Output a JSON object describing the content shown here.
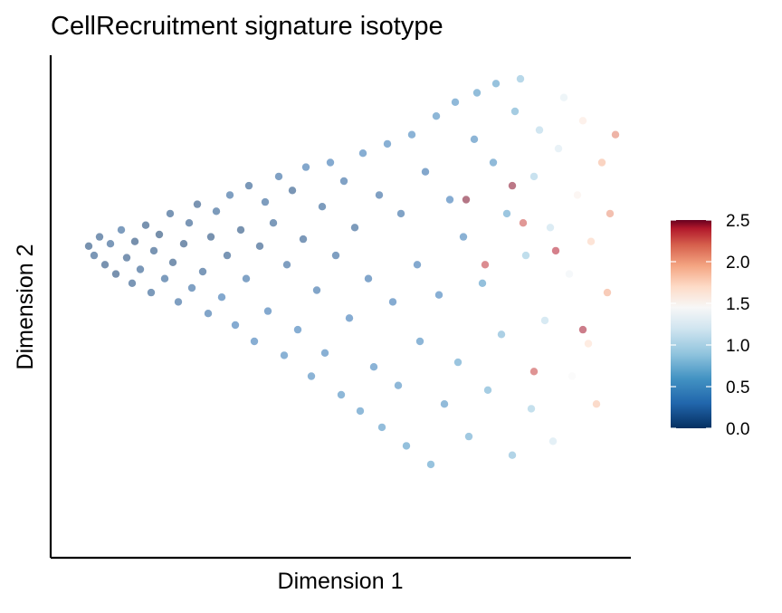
{
  "chart_data": {
    "type": "scatter",
    "title": "CellRecruitment signature isotype",
    "xlabel": "Dimension 1",
    "ylabel": "Dimension 2",
    "xticks_visible": false,
    "yticks_visible": false,
    "grid": false,
    "point_opacity": 0.55,
    "colorbar": {
      "placement": "right",
      "min": 0,
      "max": 2.5,
      "ticks": [
        "0.0",
        "0.5",
        "1.0",
        "1.5",
        "2.0",
        "2.5"
      ],
      "tick_values": [
        0,
        0.5,
        1.0,
        1.5,
        2.0,
        2.5
      ],
      "colors": [
        {
          "value": 0.0,
          "color": "#053061"
        },
        {
          "value": 0.3,
          "color": "#2166ac"
        },
        {
          "value": 0.6,
          "color": "#4393c3"
        },
        {
          "value": 0.9,
          "color": "#92c5de"
        },
        {
          "value": 1.2,
          "color": "#d1e5f0"
        },
        {
          "value": 1.45,
          "color": "#f7f7f7"
        },
        {
          "value": 1.7,
          "color": "#fddbc7"
        },
        {
          "value": 1.95,
          "color": "#f4a582"
        },
        {
          "value": 2.2,
          "color": "#d6604d"
        },
        {
          "value": 2.4,
          "color": "#b2182b"
        },
        {
          "value": 2.5,
          "color": "#67001f"
        }
      ]
    },
    "points": [
      [
        -0.94,
        0.26,
        0.05
      ],
      [
        -0.92,
        0.22,
        0.1
      ],
      [
        -0.9,
        0.3,
        0.08
      ],
      [
        -0.88,
        0.18,
        0.06
      ],
      [
        -0.86,
        0.27,
        0.12
      ],
      [
        -0.84,
        0.14,
        0.04
      ],
      [
        -0.82,
        0.33,
        0.16
      ],
      [
        -0.8,
        0.21,
        0.07
      ],
      [
        -0.78,
        0.1,
        0.09
      ],
      [
        -0.77,
        0.28,
        0.03
      ],
      [
        -0.75,
        0.16,
        0.11
      ],
      [
        -0.73,
        0.35,
        0.05
      ],
      [
        -0.71,
        0.06,
        0.13
      ],
      [
        -0.7,
        0.24,
        0.08
      ],
      [
        -0.68,
        0.31,
        0.02
      ],
      [
        -0.66,
        0.12,
        0.15
      ],
      [
        -0.64,
        0.4,
        0.09
      ],
      [
        -0.63,
        0.19,
        0.06
      ],
      [
        -0.61,
        0.02,
        0.18
      ],
      [
        -0.59,
        0.27,
        0.04
      ],
      [
        -0.57,
        0.36,
        0.1
      ],
      [
        -0.56,
        0.08,
        0.2
      ],
      [
        -0.54,
        0.44,
        0.07
      ],
      [
        -0.52,
        0.15,
        0.12
      ],
      [
        -0.5,
        -0.03,
        0.24
      ],
      [
        -0.49,
        0.3,
        0.05
      ],
      [
        -0.47,
        0.41,
        0.14
      ],
      [
        -0.45,
        0.04,
        0.27
      ],
      [
        -0.43,
        0.22,
        0.09
      ],
      [
        -0.42,
        0.48,
        0.18
      ],
      [
        -0.4,
        -0.08,
        0.3
      ],
      [
        -0.38,
        0.33,
        0.06
      ],
      [
        -0.36,
        0.12,
        0.22
      ],
      [
        -0.35,
        0.52,
        0.11
      ],
      [
        -0.33,
        -0.15,
        0.34
      ],
      [
        -0.31,
        0.26,
        0.08
      ],
      [
        -0.29,
        0.45,
        0.16
      ],
      [
        -0.28,
        -0.02,
        0.28
      ],
      [
        -0.26,
        0.36,
        0.13
      ],
      [
        -0.24,
        0.56,
        0.2
      ],
      [
        -0.22,
        -0.21,
        0.38
      ],
      [
        -0.21,
        0.18,
        0.17
      ],
      [
        -0.19,
        0.5,
        0.09
      ],
      [
        -0.17,
        -0.1,
        0.33
      ],
      [
        -0.15,
        0.29,
        0.12
      ],
      [
        -0.14,
        0.6,
        0.26
      ],
      [
        -0.12,
        -0.3,
        0.41
      ],
      [
        -0.1,
        0.07,
        0.24
      ],
      [
        -0.08,
        0.43,
        0.15
      ],
      [
        -0.07,
        -0.2,
        0.36
      ],
      [
        -0.05,
        0.62,
        0.29
      ],
      [
        -0.03,
        0.22,
        0.18
      ],
      [
        -0.01,
        -0.38,
        0.45
      ],
      [
        0.0,
        0.54,
        0.21
      ],
      [
        0.02,
        -0.05,
        0.31
      ],
      [
        0.04,
        0.34,
        0.14
      ],
      [
        0.06,
        -0.45,
        0.48
      ],
      [
        0.07,
        0.66,
        0.33
      ],
      [
        0.09,
        0.12,
        0.25
      ],
      [
        0.11,
        -0.26,
        0.4
      ],
      [
        0.13,
        0.48,
        0.19
      ],
      [
        0.14,
        -0.52,
        0.52
      ],
      [
        0.16,
        0.7,
        0.36
      ],
      [
        0.18,
        0.02,
        0.3
      ],
      [
        0.2,
        -0.34,
        0.46
      ],
      [
        0.21,
        0.4,
        0.22
      ],
      [
        0.23,
        -0.6,
        0.55
      ],
      [
        0.25,
        0.74,
        0.4
      ],
      [
        0.27,
        0.18,
        0.28
      ],
      [
        0.28,
        -0.15,
        0.43
      ],
      [
        0.3,
        0.58,
        0.26
      ],
      [
        0.32,
        -0.68,
        0.59
      ],
      [
        0.34,
        0.82,
        0.44
      ],
      [
        0.35,
        0.05,
        0.35
      ],
      [
        0.37,
        -0.42,
        0.5
      ],
      [
        0.39,
        0.46,
        0.31
      ],
      [
        0.41,
        0.88,
        0.47
      ],
      [
        0.42,
        -0.24,
        0.62
      ],
      [
        0.44,
        0.3,
        0.37
      ],
      [
        0.46,
        -0.56,
        0.66
      ],
      [
        0.48,
        0.72,
        0.42
      ],
      [
        0.49,
        0.92,
        0.51
      ],
      [
        0.51,
        0.1,
        0.55
      ],
      [
        0.53,
        -0.36,
        0.7
      ],
      [
        0.55,
        0.62,
        0.48
      ],
      [
        0.56,
        0.96,
        0.58
      ],
      [
        0.58,
        -0.12,
        0.74
      ],
      [
        0.6,
        0.4,
        0.63
      ],
      [
        0.62,
        -0.64,
        0.78
      ],
      [
        0.63,
        0.84,
        0.69
      ],
      [
        0.65,
        0.98,
        0.82
      ],
      [
        0.67,
        0.22,
        0.88
      ],
      [
        0.69,
        -0.44,
        0.92
      ],
      [
        0.7,
        0.56,
        0.95
      ],
      [
        0.72,
        0.76,
        1.02
      ],
      [
        0.74,
        -0.06,
        1.08
      ],
      [
        0.76,
        0.34,
        1.12
      ],
      [
        0.77,
        -0.58,
        1.18
      ],
      [
        0.79,
        0.68,
        1.24
      ],
      [
        0.81,
        0.9,
        1.3
      ],
      [
        0.83,
        0.14,
        1.38
      ],
      [
        0.84,
        -0.3,
        1.45
      ],
      [
        0.86,
        0.48,
        1.52
      ],
      [
        0.88,
        0.8,
        1.6
      ],
      [
        0.9,
        -0.16,
        1.68
      ],
      [
        0.91,
        0.28,
        1.76
      ],
      [
        0.93,
        -0.42,
        1.84
      ],
      [
        0.95,
        0.62,
        1.9
      ],
      [
        0.97,
        0.06,
        1.96
      ],
      [
        0.98,
        0.4,
        2.04
      ],
      [
        1.0,
        0.74,
        2.12
      ],
      [
        0.66,
        0.36,
        2.28
      ],
      [
        0.52,
        0.18,
        2.34
      ],
      [
        0.78,
        0.24,
        2.4
      ],
      [
        0.62,
        0.52,
        2.46
      ],
      [
        0.45,
        0.46,
        2.48
      ],
      [
        0.88,
        -0.1,
        2.42
      ],
      [
        0.7,
        -0.28,
        2.3
      ]
    ]
  }
}
